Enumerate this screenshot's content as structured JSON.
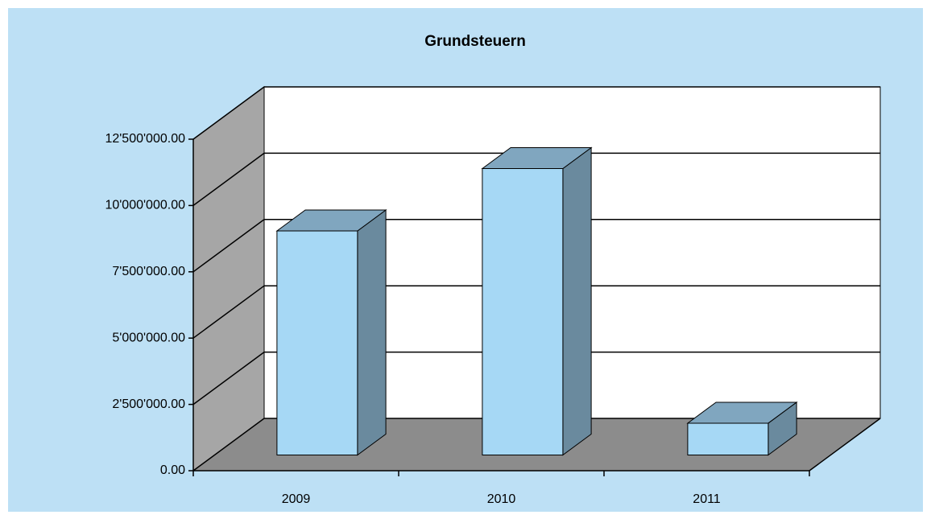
{
  "chart_data": {
    "type": "bar3d",
    "title": "Grundsteuern",
    "categories": [
      "2009",
      "2010",
      "2011"
    ],
    "values": [
      8450000,
      10800000,
      1200000
    ],
    "color": "#a6d8f5",
    "ylim": [
      0,
      12500000
    ],
    "yticks": [
      {
        "value": 0,
        "label": "0.00"
      },
      {
        "value": 2500000,
        "label": "2'500'000.00"
      },
      {
        "value": 5000000,
        "label": "5'000'000.00"
      },
      {
        "value": 7500000,
        "label": "7'500'000.00"
      },
      {
        "value": 10000000,
        "label": "10'000'000.00"
      },
      {
        "value": 12500000,
        "label": "12'500'000.00"
      }
    ],
    "grid": true
  }
}
